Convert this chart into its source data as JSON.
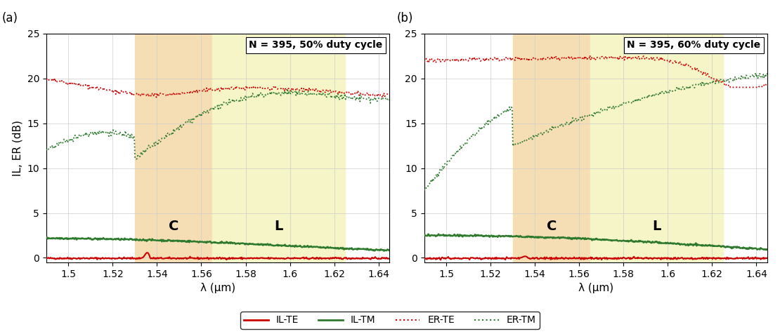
{
  "xlim": [
    1.49,
    1.645
  ],
  "ylim": [
    -0.5,
    25
  ],
  "xticks": [
    1.5,
    1.52,
    1.54,
    1.56,
    1.58,
    1.6,
    1.62,
    1.64
  ],
  "yticks": [
    0,
    5,
    10,
    15,
    20,
    25
  ],
  "xlabel": "λ (μm)",
  "ylabel": "IL, ER (dB)",
  "C_band": [
    1.53,
    1.565
  ],
  "L_band": [
    1.565,
    1.625
  ],
  "C_color": "#f5deb3",
  "L_color": "#f5f5c8",
  "panel_a_title": "N = 395, 50% duty cycle",
  "panel_b_title": "N = 395, 60% duty cycle",
  "color_red": "#cc0000",
  "color_green": "#2d7a2d",
  "C_label": "C",
  "L_label": "L",
  "legend_entries": [
    "IL-TE",
    "IL-TM",
    "ER-TE",
    "ER-TM"
  ]
}
